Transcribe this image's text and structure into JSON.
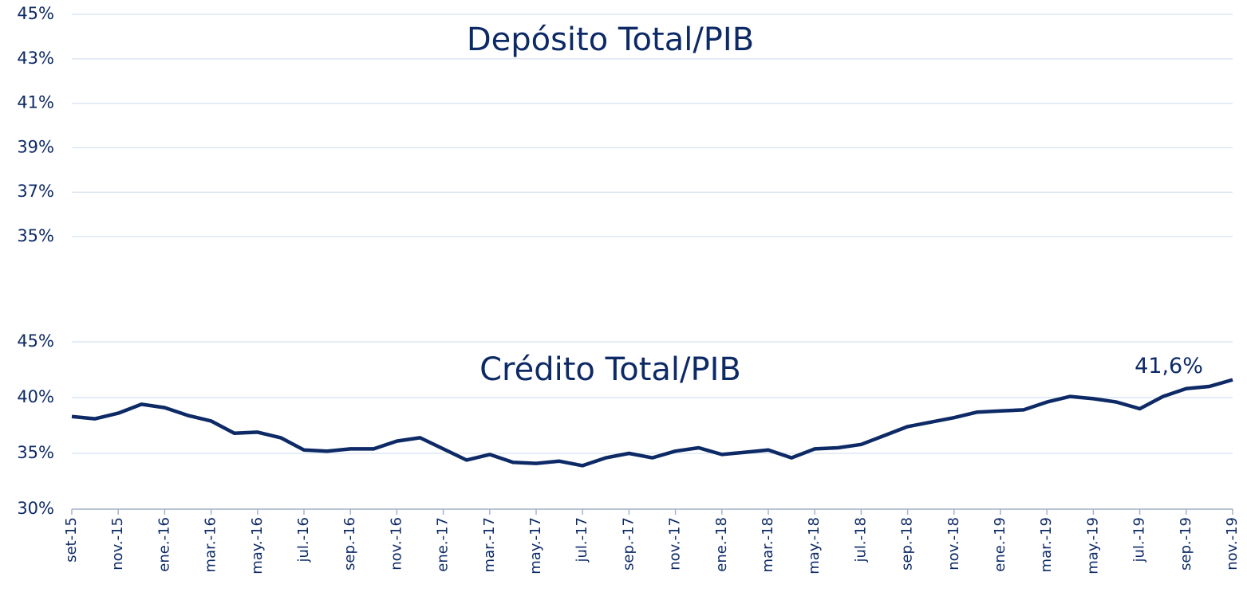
{
  "chart_data": [
    {
      "type": "line",
      "title": "Depósito Total/PIB",
      "ylim": [
        35,
        45
      ],
      "yticks": [
        {
          "value": 35,
          "label": "35%"
        },
        {
          "value": 37,
          "label": "37%"
        },
        {
          "value": 39,
          "label": "39%"
        },
        {
          "value": 41,
          "label": "41%"
        },
        {
          "value": 43,
          "label": "43%"
        },
        {
          "value": 45,
          "label": "45%"
        }
      ],
      "grid": true
    },
    {
      "type": "line",
      "title": "Crédito Total/PIB",
      "categories": [
        "set-15",
        null,
        "nov.-15",
        null,
        "ene.-16",
        null,
        "mar.-16",
        null,
        "may.-16",
        null,
        "jul.-16",
        null,
        "sep.-16",
        null,
        "nov.-16",
        null,
        "ene.-17",
        null,
        "mar.-17",
        null,
        "may.-17",
        null,
        "jul.-17",
        null,
        "sep.-17",
        null,
        "nov.-17",
        null,
        "ene.-18",
        null,
        "mar.-18",
        null,
        "may.-18",
        null,
        "jul.-18",
        null,
        "sep.-18",
        null,
        "nov.-18",
        null,
        "ene.-19",
        null,
        "mar.-19",
        null,
        "may.-19",
        null,
        "jul.-19",
        null,
        "sep.-19",
        null,
        "nov.-19"
      ],
      "values": [
        38.3,
        38.1,
        38.6,
        39.4,
        39.1,
        38.4,
        37.9,
        36.8,
        36.9,
        36.4,
        35.3,
        35.2,
        35.4,
        35.4,
        36.1,
        36.4,
        35.4,
        34.4,
        34.9,
        34.2,
        34.1,
        34.3,
        33.9,
        34.6,
        35.0,
        34.6,
        35.2,
        35.5,
        34.9,
        35.1,
        35.3,
        34.6,
        35.4,
        35.5,
        35.8,
        36.6,
        37.4,
        37.8,
        38.2,
        38.7,
        38.8,
        38.9,
        39.6,
        40.1,
        39.9,
        39.6,
        39.0,
        40.1,
        40.8,
        41.0,
        41.6
      ],
      "value_labels": [
        null,
        null,
        null,
        null,
        null,
        null,
        null,
        null,
        null,
        null,
        null,
        null,
        null,
        null,
        null,
        null,
        null,
        null,
        null,
        null,
        null,
        null,
        null,
        null,
        null,
        null,
        null,
        null,
        null,
        null,
        null,
        null,
        null,
        null,
        null,
        null,
        null,
        null,
        null,
        null,
        null,
        null,
        null,
        null,
        null,
        null,
        null,
        null,
        null,
        null,
        "41,6%"
      ],
      "color": "#0d2a66",
      "ylim": [
        30,
        45
      ],
      "yticks": [
        {
          "value": 30,
          "label": "30%"
        },
        {
          "value": 35,
          "label": "35%"
        },
        {
          "value": 40,
          "label": "40%"
        },
        {
          "value": 45,
          "label": "45%"
        }
      ],
      "grid": true
    }
  ]
}
